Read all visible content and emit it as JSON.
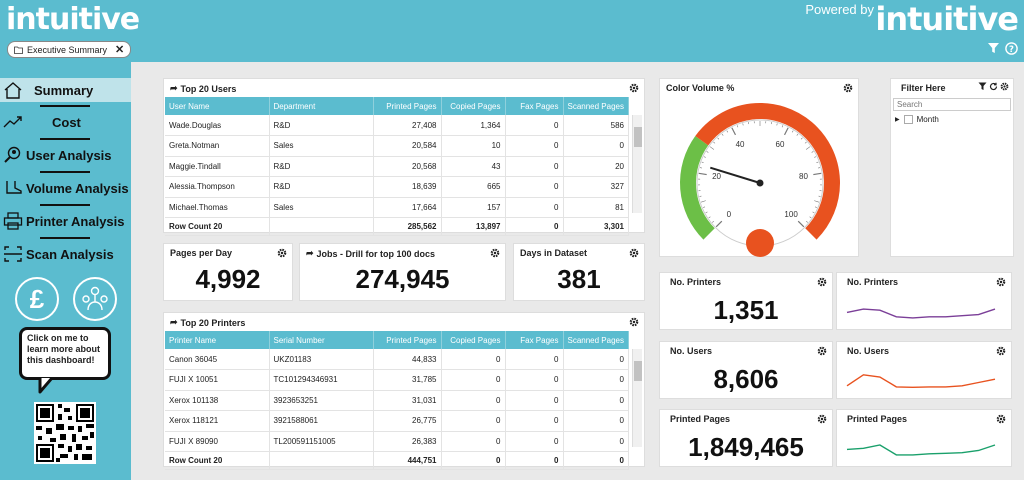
{
  "header": {
    "logo_left": "intuitive",
    "powered_by": "Powered by",
    "logo_right": "intuitive",
    "tab_label": "Executive Summary"
  },
  "sidebar": {
    "items": [
      {
        "label": "Summary",
        "icon": "home-icon"
      },
      {
        "label": "Cost",
        "icon": "trend-icon"
      },
      {
        "label": "User Analysis",
        "icon": "user-search-icon"
      },
      {
        "label": "Volume Analysis",
        "icon": "boot-icon"
      },
      {
        "label": "Printer Analysis",
        "icon": "printer-icon"
      },
      {
        "label": "Scan Analysis",
        "icon": "scan-icon"
      }
    ],
    "bubble_text": "Click on me to learn more about this dashboard!"
  },
  "users_table": {
    "title": "Top 20 Users",
    "headers": [
      "User Name",
      "Department",
      "Printed Pages",
      "Copied Pages",
      "Fax Pages",
      "Scanned Pages"
    ],
    "rows": [
      [
        "Wade.Douglas",
        "R&D",
        "27,408",
        "1,364",
        "0",
        "586"
      ],
      [
        "Greta.Notman",
        "Sales",
        "20,584",
        "10",
        "0",
        "0"
      ],
      [
        "Maggie.Tindall",
        "R&D",
        "20,568",
        "43",
        "0",
        "20"
      ],
      [
        "Alessia.Thompson",
        "R&D",
        "18,639",
        "665",
        "0",
        "327"
      ],
      [
        "Michael.Thomas",
        "Sales",
        "17,664",
        "157",
        "0",
        "81"
      ]
    ],
    "total": [
      "Row Count 20",
      "",
      "285,562",
      "13,897",
      "0",
      "3,301"
    ]
  },
  "printers_table": {
    "title": "Top 20 Printers",
    "headers": [
      "Printer Name",
      "Serial Number",
      "Printed Pages",
      "Copied Pages",
      "Fax Pages",
      "Scanned Pages"
    ],
    "rows": [
      [
        "Canon 36045",
        "UKZ01183",
        "44,833",
        "0",
        "0",
        "0"
      ],
      [
        "FUJI X 10051",
        "TC101294346931",
        "31,785",
        "0",
        "0",
        "0"
      ],
      [
        "Xerox 101138",
        "3923653251",
        "31,031",
        "0",
        "0",
        "0"
      ],
      [
        "Xerox 118121",
        "3921588061",
        "26,775",
        "0",
        "0",
        "0"
      ],
      [
        "FUJI X 89090",
        "TL200591151005",
        "26,383",
        "0",
        "0",
        "0"
      ]
    ],
    "total": [
      "Row Count 20",
      "",
      "444,751",
      "0",
      "0",
      "0"
    ]
  },
  "kpis": {
    "pages_per_day": {
      "title": "Pages per Day",
      "value": "4,992"
    },
    "jobs": {
      "title": "Jobs - Drill for top 100 docs",
      "value": "274,945"
    },
    "days": {
      "title": "Days in Dataset",
      "value": "381"
    },
    "printers": {
      "title": "No. Printers",
      "value": "1,351"
    },
    "users": {
      "title": "No. Users",
      "value": "8,606"
    },
    "printed": {
      "title": "Printed Pages",
      "value": "1,849,465"
    }
  },
  "sparks": {
    "printers": {
      "title": "No. Printers",
      "color": "#7b3f98",
      "values": [
        0.3,
        0.45,
        0.4,
        0.1,
        0.05,
        0.1,
        0.1,
        0.15,
        0.2,
        0.45
      ]
    },
    "users": {
      "title": "No. Users",
      "color": "#e8521f",
      "values": [
        0.1,
        0.6,
        0.5,
        0.05,
        0.03,
        0.05,
        0.05,
        0.1,
        0.25,
        0.4
      ]
    },
    "printed": {
      "title": "Printed Pages",
      "color": "#1aa06b",
      "values": [
        0.3,
        0.35,
        0.5,
        0.05,
        0.05,
        0.1,
        0.12,
        0.15,
        0.25,
        0.5
      ]
    }
  },
  "gauge": {
    "title": "Color Volume %",
    "value": 23,
    "min": 0,
    "max": 100,
    "green_to": 30,
    "ticks": [
      "0",
      "20",
      "40",
      "60",
      "80",
      "100"
    ],
    "green": "#6cbf47",
    "orange": "#e8521f"
  },
  "filter": {
    "title": "Filter Here",
    "search_placeholder": "Search",
    "item": "Month"
  }
}
